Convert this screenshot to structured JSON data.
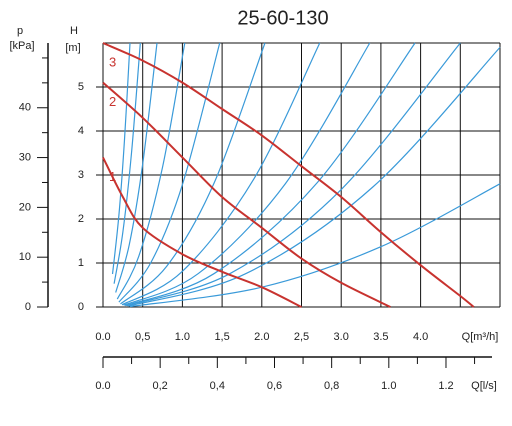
{
  "chart_data": {
    "type": "line",
    "title": "25-60-130",
    "y_label": "H",
    "y_unit": "[m]",
    "p_label": "p",
    "p_unit": "[kPa]",
    "x_label": "Q[m³/h]",
    "x2_label": "Q[l/s]",
    "grid": true,
    "xlim": [
      0,
      5
    ],
    "ylim": [
      0,
      6
    ],
    "xgrid": [
      0,
      0.5,
      1,
      1.5,
      2,
      2.5,
      3,
      3.5,
      4,
      4.5,
      5
    ],
    "xticks": [
      {
        "value": 0,
        "label": "0.0"
      },
      {
        "value": 0.5,
        "label": "0,5"
      },
      {
        "value": 1,
        "label": "1.0"
      },
      {
        "value": 1.5,
        "label": "1,5"
      },
      {
        "value": 2,
        "label": "2.0"
      },
      {
        "value": 2.5,
        "label": "2,5"
      },
      {
        "value": 3,
        "label": "3.0"
      },
      3.5,
      {
        "value": 4,
        "label": "4.0"
      }
    ],
    "yticks": [
      0,
      1,
      2,
      3,
      4,
      5
    ],
    "x2lim": [
      0,
      1.389
    ],
    "x2ticks": [
      {
        "value": 0,
        "label": "0.0"
      },
      {
        "value": 0.2,
        "label": "0,2"
      },
      {
        "value": 0.4,
        "label": "0,4"
      },
      {
        "value": 0.6,
        "label": "0,6"
      },
      {
        "value": 0.8,
        "label": "0,8"
      },
      {
        "value": 1,
        "label": "1.0"
      },
      1.2
    ],
    "x2minor": [
      0.1,
      0.3,
      0.5,
      0.7,
      0.9,
      1.1,
      1.3
    ],
    "plim": [
      0,
      53
    ],
    "pticks": [
      0,
      10,
      20,
      30,
      40
    ],
    "pminor": [
      5,
      15,
      25,
      35,
      45,
      50
    ],
    "series": [
      {
        "name": "1",
        "color": "#c8332f",
        "x": [
          0,
          0.25,
          0.5,
          1,
          1.5,
          2,
          2.5
        ],
        "values": [
          3.4,
          2.5,
          1.8,
          1.2,
          0.8,
          0.45,
          0
        ]
      },
      {
        "name": "2",
        "color": "#c8332f",
        "x": [
          0,
          0.5,
          1,
          1.5,
          2,
          2.5,
          3,
          3.62
        ],
        "values": [
          5.1,
          4.3,
          3.4,
          2.5,
          1.8,
          1.1,
          0.55,
          0
        ]
      },
      {
        "name": "3",
        "color": "#c8332f",
        "x": [
          0,
          0.5,
          1,
          1.5,
          2,
          2.5,
          3,
          3.5,
          4,
          4.5,
          4.67
        ],
        "values": [
          6,
          5.6,
          5.1,
          4.5,
          3.9,
          3.2,
          2.5,
          1.7,
          0.95,
          0.25,
          0
        ]
      }
    ],
    "system_curves": [
      {
        "color": "#3a9ad9",
        "x": [
          0.12,
          0.2,
          0.27,
          0.34
        ],
        "values": [
          0.75,
          2.08,
          3.78,
          6
        ]
      },
      {
        "color": "#3a9ad9",
        "x": [
          0.14,
          0.25,
          0.36,
          0.47
        ],
        "values": [
          0.53,
          1.7,
          3.52,
          6
        ]
      },
      {
        "color": "#3a9ad9",
        "x": [
          0.16,
          0.33,
          0.5,
          0.68
        ],
        "values": [
          0.33,
          1.41,
          3.25,
          6
        ]
      },
      {
        "color": "#3a9ad9",
        "x": [
          0.18,
          0.45,
          0.75,
          1.03
        ],
        "values": [
          0.18,
          1.15,
          3.18,
          6
        ]
      },
      {
        "color": "#3a9ad9",
        "x": [
          0.2,
          0.6,
          1,
          1.47
        ],
        "values": [
          0.11,
          1,
          2.78,
          6
        ]
      },
      {
        "color": "#3a9ad9",
        "x": [
          0.22,
          0.8,
          1.4,
          2.04
        ],
        "values": [
          0.07,
          0.92,
          2.82,
          6
        ]
      },
      {
        "color": "#3a9ad9",
        "x": [
          0.24,
          1,
          1.9,
          2.73
        ],
        "values": [
          0.05,
          0.81,
          2.91,
          6
        ]
      },
      {
        "color": "#3a9ad9",
        "x": [
          0.26,
          1.2,
          2.3,
          3.36
        ],
        "values": [
          0.04,
          0.76,
          2.81,
          6
        ]
      },
      {
        "color": "#3a9ad9",
        "x": [
          0.28,
          1.4,
          2.7,
          3.93
        ],
        "values": [
          0.03,
          0.76,
          2.83,
          6
        ]
      },
      {
        "color": "#3a9ad9",
        "x": [
          0.3,
          1.6,
          3,
          4.5
        ],
        "values": [
          0.03,
          0.76,
          2.67,
          6
        ]
      },
      {
        "color": "#3a9ad9",
        "x": [
          0.32,
          1.8,
          3.4,
          5
        ],
        "values": [
          0.02,
          0.76,
          2.73,
          5.9
        ]
      },
      {
        "color": "#3a9ad9",
        "x": [
          0.34,
          2,
          3.5,
          5
        ],
        "values": [
          0.01,
          0.45,
          1.37,
          2.8
        ]
      }
    ]
  }
}
